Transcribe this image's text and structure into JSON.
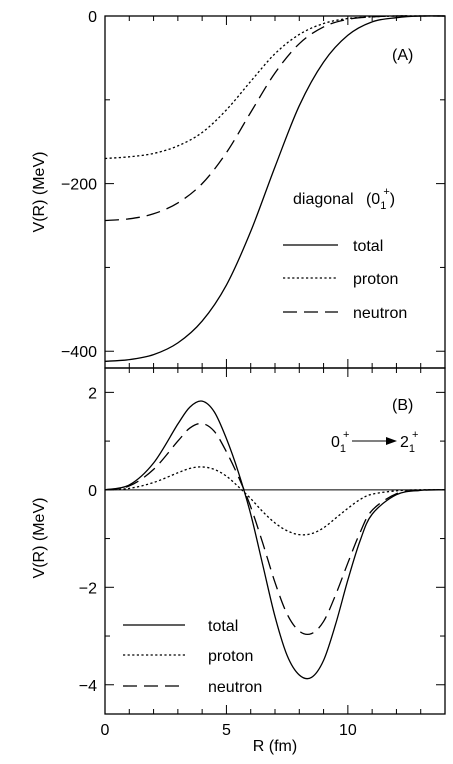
{
  "chart_data": [
    {
      "type": "line",
      "panel_label": "(A)",
      "annotation": {
        "text": "diagonal",
        "state": "0",
        "state_sub": "1",
        "state_sup": "+"
      },
      "ylabel": "V(R) (MeV)",
      "xlabel": "",
      "xlim": [
        0,
        14
      ],
      "ylim": [
        -420,
        0
      ],
      "yticks": [
        0,
        -200,
        -400
      ],
      "ytick_labels": [
        "0",
        "-200",
        "-400"
      ],
      "xticks": [
        0,
        5,
        10
      ],
      "xtick_labels": [
        "",
        "",
        ""
      ],
      "legend_position": "bottom-right",
      "series": [
        {
          "name": "total",
          "style": "solid",
          "x": [
            0,
            1,
            2,
            3,
            4,
            5,
            6,
            7,
            8,
            9,
            10,
            11,
            12,
            13,
            14
          ],
          "y": [
            -412,
            -410,
            -404,
            -390,
            -364,
            -321,
            -257,
            -180,
            -107,
            -55,
            -23,
            -7,
            -2,
            0,
            0
          ]
        },
        {
          "name": "proton",
          "style": "dotted",
          "x": [
            0,
            1,
            2,
            3,
            4,
            5,
            6,
            7,
            8,
            9,
            10,
            11,
            12,
            13,
            14
          ],
          "y": [
            -170,
            -168,
            -164,
            -155,
            -139,
            -112,
            -78,
            -45,
            -22,
            -9,
            -3,
            -1,
            0,
            0,
            0
          ]
        },
        {
          "name": "neutron",
          "style": "dashed",
          "x": [
            0,
            1,
            2,
            3,
            4,
            5,
            6,
            7,
            8,
            9,
            10,
            11,
            12,
            13,
            14
          ],
          "y": [
            -244,
            -242,
            -236,
            -223,
            -200,
            -163,
            -115,
            -68,
            -33,
            -13,
            -4,
            -1,
            0,
            0,
            0
          ]
        }
      ]
    },
    {
      "type": "line",
      "panel_label": "(B)",
      "annotation": {
        "from": "0",
        "from_sub": "1",
        "from_sup": "+",
        "to": "2",
        "to_sub": "1",
        "to_sup": "+"
      },
      "ylabel": "V(R) (MeV)",
      "xlabel": "R (fm)",
      "xlim": [
        0,
        14
      ],
      "ylim": [
        -4.6,
        2.5
      ],
      "yticks": [
        2,
        0,
        -2,
        -4
      ],
      "ytick_labels": [
        "2",
        "0",
        "-2",
        "-4"
      ],
      "xticks": [
        0,
        5,
        10
      ],
      "xtick_labels": [
        "0",
        "5",
        "10"
      ],
      "zero_line": true,
      "legend_position": "bottom-left",
      "series": [
        {
          "name": "total",
          "style": "solid",
          "x": [
            0,
            1,
            2,
            3,
            3.5,
            4,
            4.5,
            5,
            5.5,
            6,
            6.5,
            7,
            7.5,
            8,
            8.5,
            9,
            9.5,
            10,
            10.5,
            11,
            12,
            13,
            14
          ],
          "y": [
            0,
            0.1,
            0.55,
            1.35,
            1.7,
            1.82,
            1.6,
            1.05,
            0.35,
            -0.5,
            -1.55,
            -2.6,
            -3.4,
            -3.8,
            -3.85,
            -3.5,
            -2.75,
            -1.85,
            -1.05,
            -0.5,
            -0.1,
            -0.01,
            0
          ]
        },
        {
          "name": "proton",
          "style": "dotted",
          "x": [
            0,
            1,
            2,
            3,
            3.5,
            4,
            4.5,
            5,
            5.5,
            6,
            6.5,
            7,
            7.5,
            8,
            8.5,
            9,
            9.5,
            10,
            10.5,
            11,
            12,
            13,
            14
          ],
          "y": [
            0,
            0.03,
            0.15,
            0.35,
            0.44,
            0.47,
            0.42,
            0.28,
            0.06,
            -0.18,
            -0.45,
            -0.68,
            -0.84,
            -0.92,
            -0.9,
            -0.78,
            -0.58,
            -0.38,
            -0.2,
            -0.09,
            -0.02,
            0,
            0
          ]
        },
        {
          "name": "neutron",
          "style": "dashed",
          "x": [
            0,
            1,
            2,
            3,
            3.5,
            4,
            4.5,
            5,
            5.5,
            6,
            6.5,
            7,
            7.5,
            8,
            8.5,
            9,
            9.5,
            10,
            10.5,
            11,
            12,
            13,
            14
          ],
          "y": [
            0,
            0.08,
            0.42,
            1.0,
            1.27,
            1.36,
            1.2,
            0.78,
            0.26,
            -0.35,
            -1.1,
            -1.9,
            -2.55,
            -2.9,
            -2.95,
            -2.7,
            -2.15,
            -1.5,
            -0.88,
            -0.42,
            -0.08,
            -0.01,
            0
          ]
        }
      ]
    }
  ]
}
